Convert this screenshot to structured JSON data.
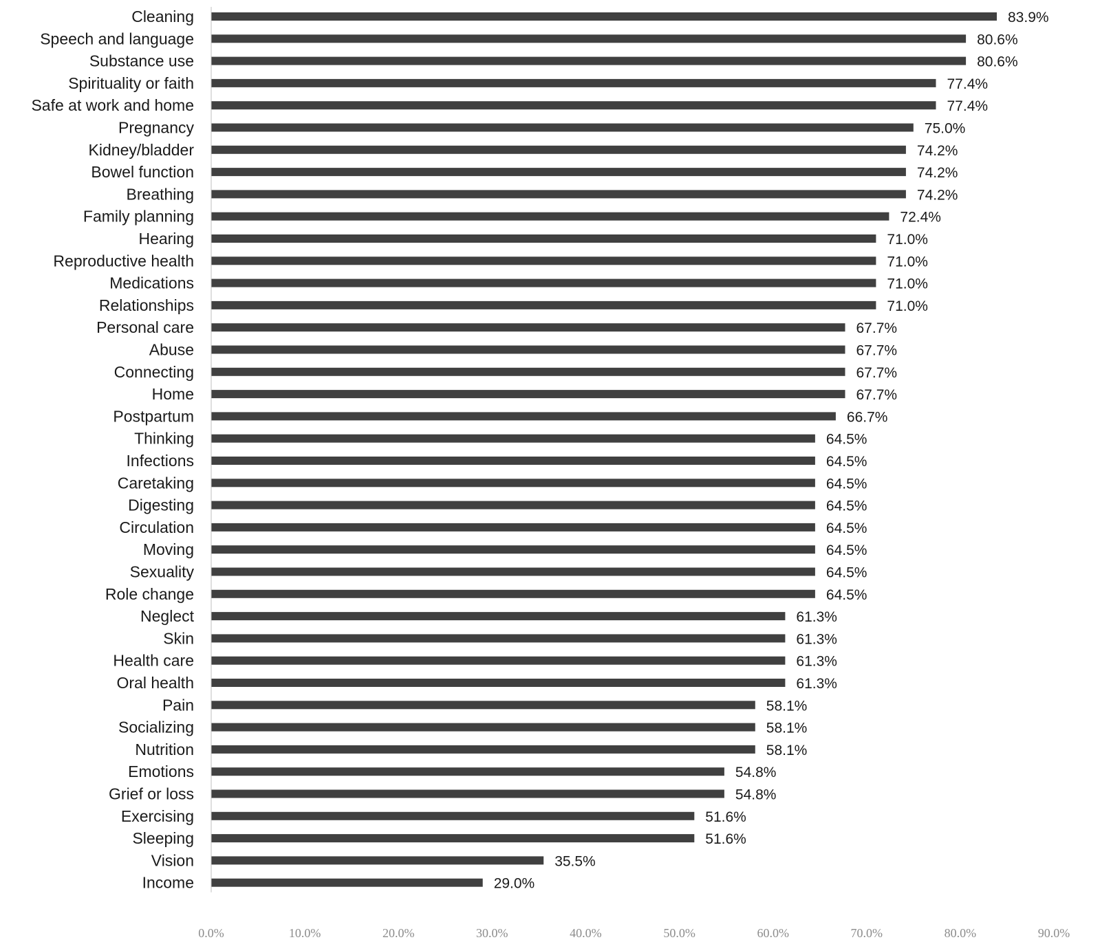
{
  "chart_data": {
    "type": "bar",
    "orientation": "horizontal",
    "title": "",
    "xlabel": "",
    "ylabel": "",
    "xlim": [
      0,
      90
    ],
    "ticks": [
      "0.0%",
      "10.0%",
      "20.0%",
      "30.0%",
      "40.0%",
      "50.0%",
      "60.0%",
      "70.0%",
      "80.0%",
      "90.0%"
    ],
    "tick_values": [
      0,
      10,
      20,
      30,
      40,
      50,
      60,
      70,
      80,
      90
    ],
    "grid": false,
    "legend": "none",
    "bar_color": "#404040",
    "categories": [
      "Cleaning",
      "Speech and language",
      "Substance use",
      "Spirituality or faith",
      "Safe at work and home",
      "Pregnancy",
      "Kidney/bladder",
      "Bowel function",
      "Breathing",
      "Family planning",
      "Hearing",
      "Reproductive health",
      "Medications",
      "Relationships",
      "Personal care",
      "Abuse",
      "Connecting",
      "Home",
      "Postpartum",
      "Thinking",
      "Infections",
      "Caretaking",
      "Digesting",
      "Circulation",
      "Moving",
      "Sexuality",
      "Role change",
      "Neglect",
      "Skin",
      "Health care",
      "Oral health",
      "Pain",
      "Socializing",
      "Nutrition",
      "Emotions",
      "Grief or loss",
      "Exercising",
      "Sleeping",
      "Vision",
      "Income"
    ],
    "values": [
      83.9,
      80.6,
      80.6,
      77.4,
      77.4,
      75.0,
      74.2,
      74.2,
      74.2,
      72.4,
      71.0,
      71.0,
      71.0,
      71.0,
      67.7,
      67.7,
      67.7,
      67.7,
      66.7,
      64.5,
      64.5,
      64.5,
      64.5,
      64.5,
      64.5,
      64.5,
      64.5,
      61.3,
      61.3,
      61.3,
      61.3,
      58.1,
      58.1,
      58.1,
      54.8,
      54.8,
      51.6,
      51.6,
      35.5,
      29.0
    ],
    "value_labels": [
      "83.9%",
      "80.6%",
      "80.6%",
      "77.4%",
      "77.4%",
      "75.0%",
      "74.2%",
      "74.2%",
      "74.2%",
      "72.4%",
      "71.0%",
      "71.0%",
      "71.0%",
      "71.0%",
      "67.7%",
      "67.7%",
      "67.7%",
      "67.7%",
      "66.7%",
      "64.5%",
      "64.5%",
      "64.5%",
      "64.5%",
      "64.5%",
      "64.5%",
      "64.5%",
      "64.5%",
      "61.3%",
      "61.3%",
      "61.3%",
      "61.3%",
      "58.1%",
      "58.1%",
      "58.1%",
      "54.8%",
      "54.8%",
      "51.6%",
      "51.6%",
      "35.5%",
      "29.0%"
    ]
  }
}
